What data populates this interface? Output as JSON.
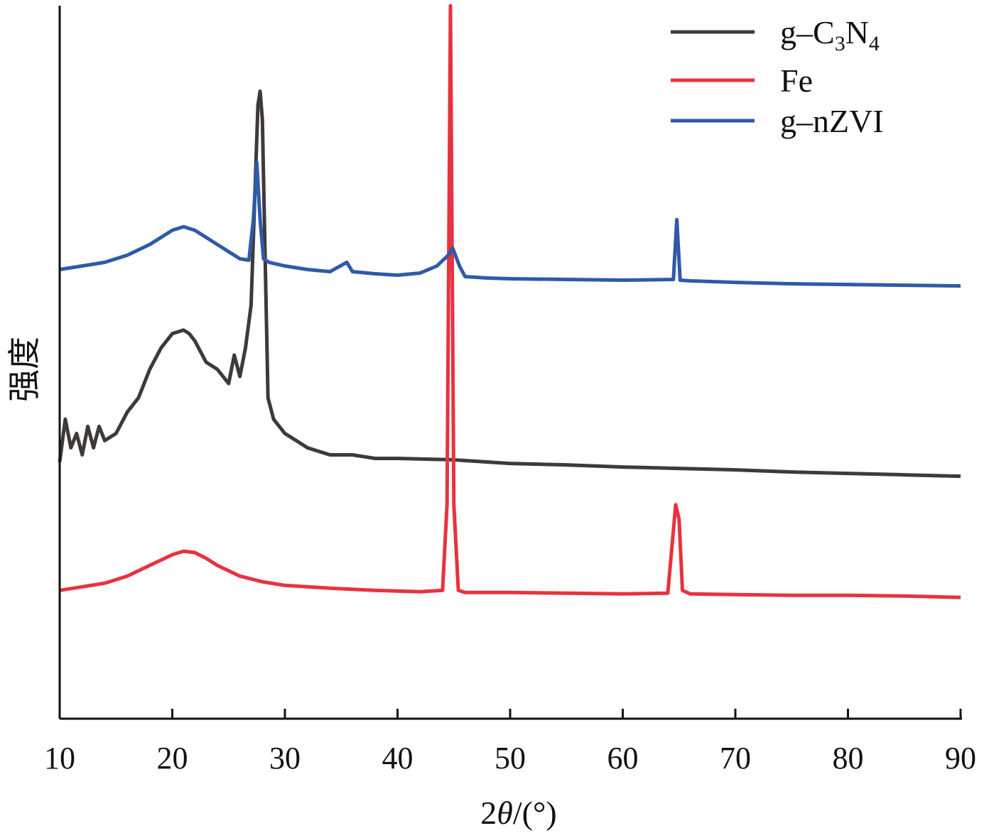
{
  "chart_data": {
    "type": "line",
    "xlabel_prefix": "2",
    "xlabel_symbol": "θ",
    "xlabel_suffix": "/(°)",
    "ylabel": "强度",
    "xlim": [
      10,
      90
    ],
    "ylim": [
      0,
      100
    ],
    "x_ticks": [
      10,
      20,
      30,
      40,
      50,
      60,
      70,
      80,
      90
    ],
    "y_ticks_shown": false,
    "grid": false,
    "legend_position": "top-right",
    "colors": {
      "g-C3N4": "#3f3a3a",
      "Fe": "#e8323f",
      "g-nZVI": "#2e5aa8"
    },
    "series": [
      {
        "name": "g–C3N4",
        "legend_base": "g–C",
        "legend_sub1": "3",
        "legend_mid": "N",
        "legend_sub2": "4",
        "color": "#3f3a3a",
        "x": [
          10,
          10.5,
          11,
          11.5,
          12,
          12.5,
          13,
          13.5,
          14,
          15,
          16,
          17,
          18,
          19,
          20,
          21,
          21.5,
          22,
          23,
          24,
          25,
          25.5,
          26,
          26.5,
          27,
          27.3,
          27.6,
          27.8,
          28,
          28.2,
          28.5,
          29,
          30,
          31,
          32,
          34,
          36,
          38,
          40,
          45,
          50,
          55,
          60,
          65,
          70,
          75,
          80,
          85,
          90
        ],
        "y": [
          36,
          42,
          38,
          40,
          37,
          41,
          38,
          41,
          39,
          40,
          43,
          45,
          49,
          52,
          54,
          54.5,
          54,
          53,
          50,
          49,
          47,
          51,
          48,
          52,
          58,
          72,
          86,
          88,
          84,
          68,
          45,
          42,
          40,
          39,
          38,
          37,
          37,
          36.5,
          36.5,
          36.3,
          35.8,
          35.6,
          35.3,
          35.1,
          34.9,
          34.6,
          34.4,
          34.2,
          34
        ]
      },
      {
        "name": "Fe",
        "legend_base": "Fe",
        "color": "#e8323f",
        "x": [
          10,
          12,
          14,
          16,
          18,
          20,
          21,
          22,
          23,
          24,
          26,
          28,
          30,
          34,
          38,
          42,
          44,
          44.4,
          44.7,
          45,
          45.4,
          46,
          50,
          55,
          60,
          64,
          64.7,
          65,
          65.3,
          66,
          70,
          75,
          80,
          85,
          90
        ],
        "y": [
          18,
          18.5,
          19,
          20,
          21.5,
          23,
          23.5,
          23.3,
          22.5,
          21.5,
          20,
          19.2,
          18.7,
          18.3,
          18,
          17.8,
          18,
          30,
          100,
          30,
          18,
          17.7,
          17.7,
          17.6,
          17.5,
          17.6,
          30,
          28,
          18,
          17.5,
          17.4,
          17.3,
          17.3,
          17.2,
          17
        ]
      },
      {
        "name": "g–nZVI",
        "legend_base": "g–nZVI",
        "color": "#2e5aa8",
        "x": [
          10,
          12,
          14,
          16,
          18,
          19,
          20,
          21,
          22,
          23,
          24,
          25,
          26,
          26.8,
          27.2,
          27.5,
          27.8,
          28.1,
          28.6,
          30,
          32,
          34,
          35.5,
          36,
          38,
          40,
          42,
          43.5,
          44.5,
          44.9,
          45.5,
          46,
          48,
          50,
          55,
          60,
          64.5,
          64.8,
          65.1,
          66,
          70,
          75,
          80,
          85,
          90
        ],
        "y": [
          63,
          63.5,
          64,
          65,
          66.5,
          67.5,
          68.5,
          69,
          68.5,
          67.5,
          66.5,
          65.5,
          64.5,
          64.3,
          70,
          78,
          70,
          64.5,
          64,
          63.5,
          63,
          62.7,
          64,
          62.7,
          62.4,
          62.2,
          62.5,
          63.5,
          65,
          66,
          63.5,
          62,
          61.8,
          61.7,
          61.6,
          61.5,
          61.6,
          70,
          61.5,
          61.4,
          61.2,
          61,
          60.9,
          60.8,
          60.7
        ]
      }
    ]
  }
}
